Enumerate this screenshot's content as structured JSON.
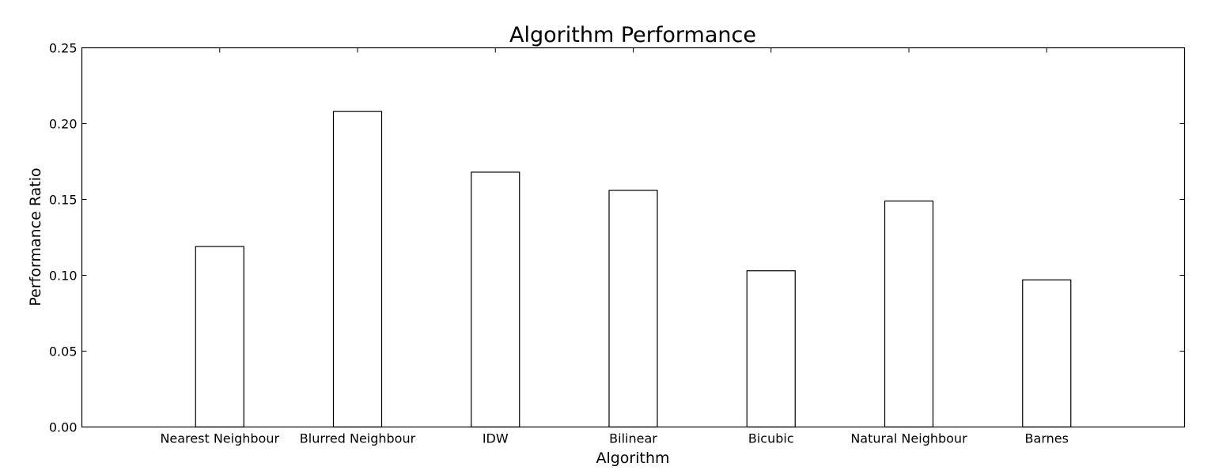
{
  "chart_data": {
    "type": "bar",
    "title": "Algorithm Performance",
    "xlabel": "Algorithm",
    "ylabel": "Performance Ratio",
    "categories": [
      "Nearest Neighbour",
      "Blurred Neighbour",
      "IDW",
      "Bilinear",
      "Bicubic",
      "Natural Neighbour",
      "Barnes"
    ],
    "values": [
      0.119,
      0.208,
      0.168,
      0.156,
      0.103,
      0.149,
      0.097
    ],
    "ylim": [
      0,
      0.25
    ],
    "yticks": [
      "0.00",
      "0.05",
      "0.10",
      "0.15",
      "0.20",
      "0.25"
    ],
    "bar_fill": "#ffffff",
    "bar_edge": "#000000",
    "grid": false,
    "legend": "none"
  }
}
